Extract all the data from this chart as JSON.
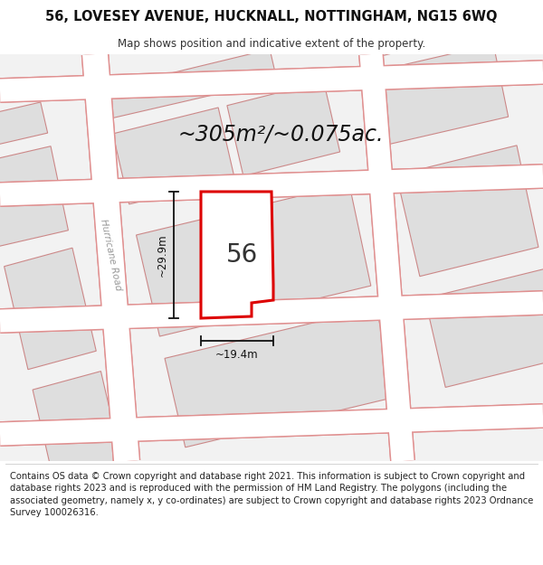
{
  "title": "56, LOVESEY AVENUE, HUCKNALL, NOTTINGHAM, NG15 6WQ",
  "subtitle": "Map shows position and indicative extent of the property.",
  "area_text": "~305m²/~0.075ac.",
  "label_56": "56",
  "dim_height": "~29.9m",
  "dim_width": "~19.4m",
  "road_label": "Hurricane Road",
  "footer": "Contains OS data © Crown copyright and database right 2021. This information is subject to Crown copyright and database rights 2023 and is reproduced with the permission of HM Land Registry. The polygons (including the associated geometry, namely x, y co-ordinates) are subject to Crown copyright and database rights 2023 Ordnance Survey 100026316.",
  "bg_color": "#ffffff",
  "map_bg": "#f2f2f2",
  "road_fill": "#ffffff",
  "road_edge": "#e09090",
  "building_fill": "#dedede",
  "building_edge": "#cc8888",
  "plot_color": "#dd0000",
  "plot_fill": "#ffffff",
  "dim_color": "#111111",
  "title_fontsize": 10.5,
  "subtitle_fontsize": 8.5,
  "area_fontsize": 17,
  "label_fontsize": 20,
  "footer_fontsize": 7.2,
  "road_label_fontsize": 7.5
}
